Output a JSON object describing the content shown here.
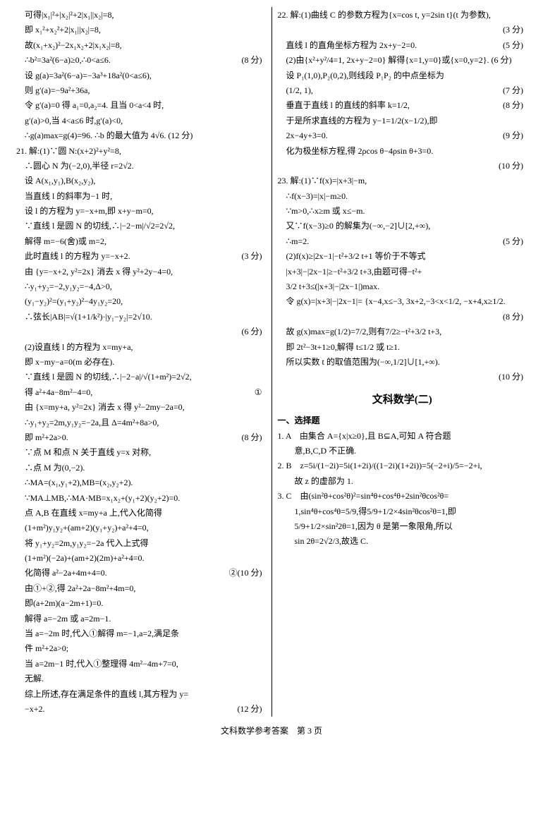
{
  "left": {
    "l1": "可得|x₁|²+|x₂|²+2|x₁||x₂|=8,",
    "l2": "即 x₁²+x₂²+2|x₁||x₂|=8,",
    "l3": "故(x₁+x₂)²−2x₁x₂+2|x₁x₂|=8,",
    "l4": "∴b²=3a²(6−a)≥0,∴0<a≤6.",
    "l4s": "(8 分)",
    "l5": "设 g(a)=3a²(6−a)=−3a³+18a²(0<a≤6),",
    "l6": "则 g′(a)=−9a²+36a,",
    "l7": "令 g′(a)=0 得 a₁=0,a₂=4. 且当 0<a<4 时,",
    "l8": "g′(a)>0,当 4<a≤6 时,g′(a)<0,",
    "l9": "∴g(a)max=g(4)=96. ∴b 的最大值为 4√6. (12 分)",
    "q21": "21. 解:(1)∵圆 N:(x+2)²+y²=8,",
    "l10": "∴圆心 N 为(−2,0),半径 r=2√2.",
    "l11": "设 A(x₁,y₁),B(x₂,y₂),",
    "l12": "当直线 l 的斜率为−1 时,",
    "l13": "设 l 的方程为 y=−x+m,即 x+y−m=0,",
    "l14": "∵直线 l 是圆 N 的切线,∴|−2−m|/√2=2√2,",
    "l15": "解得 m=−6(舍)或 m=2,",
    "l16": "此时直线 l 的方程为 y=−x+2.",
    "l16s": "(3 分)",
    "l17": "由 {y=−x+2, y²=2x} 消去 x 得 y²+2y−4=0,",
    "l18": "∴y₁+y₂=−2,y₁y₂=−4,Δ>0,",
    "l19": "(y₁−y₂)²=(y₁+y₂)²−4y₁y₂=20,",
    "l20": "∴弦长|AB|=√(1+1/k²)·|y₁−y₂|=2√10.",
    "l20s": "(6 分)",
    "l21": "(2)设直线 l 的方程为 x=my+a,",
    "l22": "即 x−my−a=0(m 必存在).",
    "l23": "∵直线 l 是圆 N 的切线,∴|−2−a|/√(1+m²)=2√2,",
    "l24": "得 a²+4a−8m²−4=0,",
    "l24s": "①",
    "l25": "由 {x=my+a, y²=2x} 消去 x 得 y²−2my−2a=0,",
    "l26": "∴y₁+y₂=2m,y₁y₂=−2a,且 Δ=4m²+8a>0,",
    "l27": "即 m²+2a>0.",
    "l27s": "(8 分)",
    "l28": "∵点 M 和点 N 关于直线 y=x 对称,",
    "l29": "∴点 M 为(0,−2).",
    "l30": "∴MA=(x₁,y₁+2),MB=(x₂,y₂+2).",
    "l31": "∵MA⊥MB,∴MA·MB=x₁x₂+(y₁+2)(y₂+2)=0.",
    "l32": "点 A,B 在直线 x=my+a 上,代入化简得",
    "l33": "(1+m²)y₁y₂+(am+2)(y₁+y₂)+a²+4=0,",
    "l34": "将 y₁+y₂=2m,y₁y₂=−2a 代入上式得",
    "l35": "(1+m²)(−2a)+(am+2)(2m)+a²+4=0.",
    "l36": "化简得 a²−2a+4m+4=0.",
    "l36s": "②(10 分)",
    "l37": "由①+②,得 2a²+2a−8m²+4m=0,",
    "l38": "即(a+2m)(a−2m+1)=0.",
    "l39": "解得 a=−2m 或 a=2m−1.",
    "l40": "当 a=−2m 时,代入①解得 m=−1,a=2,满足条",
    "l41": "件 m²+2a>0;",
    "l42": "当 a=2m−1 时,代入①整理得 4m²−4m+7=0,",
    "l43": "无解.",
    "l44": "综上所述,存在满足条件的直线 l,其方程为 y=",
    "l45": "−x+2.",
    "l45s": "(12 分)"
  },
  "right": {
    "q22": "22. 解:(1)曲线 C 的参数方程为{x=cos t, y=2sin t}(t 为参数),",
    "r1s": "(3 分)",
    "r2": "直线 l 的直角坐标方程为 2x+y−2=0.",
    "r2s": "(5 分)",
    "r3": "(2)由{x²+y²/4=1, 2x+y−2=0} 解得{x=1,y=0}或{x=0,y=2}. (6 分)",
    "r4": "设 P₁(1,0),P₂(0,2),则线段 P₁P₂ 的中点坐标为",
    "r5": "(1/2, 1),",
    "r5s": "(7 分)",
    "r6": "垂直于直线 l 的直线的斜率 k=1/2,",
    "r6s": "(8 分)",
    "r7": "于是所求直线的方程为 y−1=1/2(x−1/2),即",
    "r8": "2x−4y+3=0.",
    "r8s": "(9 分)",
    "r9": "化为极坐标方程,得 2ρcos θ−4ρsin θ+3=0.",
    "r9s": "(10 分)",
    "q23": "23. 解:(1)∵f(x)=|x+3|−m,",
    "r10": "∴f(x−3)=|x|−m≥0.",
    "r11": "∵m>0,∴x≥m 或 x≤−m.",
    "r12": "又∵f(x−3)≥0 的解集为(−∞,−2]∪[2,+∞),",
    "r13": "∴m=2.",
    "r13s": "(5 分)",
    "r14": "(2)f(x)≥|2x−1|−t²+3/2 t+1 等价于不等式",
    "r15": "|x+3|−|2x−1|≥−t²+3/2 t+3,由题可得−t²+",
    "r16": "3/2 t+3≤(|x+3|−|2x−1|)max.",
    "r17": "令 g(x)=|x+3|−|2x−1|= {x−4,x≤−3, 3x+2,−3<x<1/2, −x+4,x≥1/2.",
    "r17s": "(8 分)",
    "r18": "故 g(x)max=g(1/2)=7/2,则有7/2≥−t²+3/2 t+3,",
    "r19": "即 2t²−3t+1≥0,解得 t≤1/2 或 t≥1.",
    "r20": "所以实数 t 的取值范围为(−∞,1/2]∪[1,+∞).",
    "r20s": "(10 分)",
    "title2": "文科数学(二)",
    "sel": "一、选择题",
    "a1": "1. A　由集合 A={x|x≥0},且 B⊆A,可知 A 符合题",
    "a1b": "　　意,B,C,D 不正确.",
    "a2": "2. B　z=5i/(1−2i)=5i(1+2i)/((1−2i)(1+2i))=5(−2+i)/5=−2+i,",
    "a2b": "　　故 z 的虚部为 1.",
    "a3": "3. C　由(sin²θ+cos²θ)²=sin⁴θ+cos⁴θ+2sin²θcos²θ=",
    "a3b": "　　1,sin⁴θ+cos⁴θ=5/9,得5/9+1/2×4sin²θcos²θ=1,即",
    "a3c": "　　5/9+1/2×sin²2θ=1,因为 θ 是第一象限角,所以",
    "a3d": "　　sin 2θ=2√2/3,故选 C."
  },
  "footer": "文科数学参考答案　第 3 页"
}
